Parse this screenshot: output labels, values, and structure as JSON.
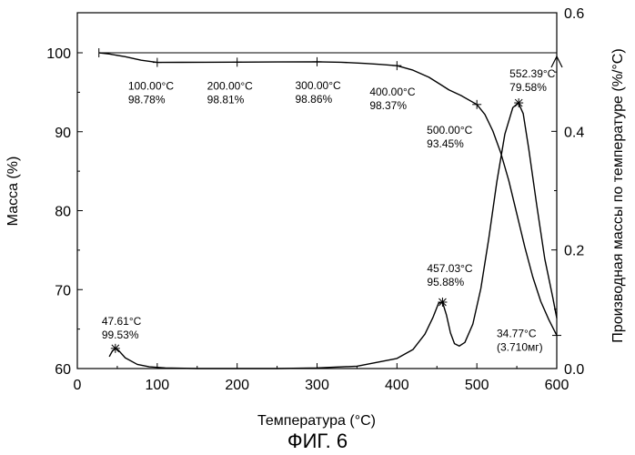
{
  "figure_caption": "ФИГ. 6",
  "chart_data": {
    "type": "line",
    "xlabel": "Температура (°C)",
    "ylabel": "Масса (%)",
    "y2label": "Производная массы по температуре (%/°C)",
    "xlim": [
      0,
      600
    ],
    "ylim": [
      60,
      105
    ],
    "y2lim": [
      0,
      0.6
    ],
    "x_ticks": [
      "0",
      "100",
      "200",
      "300",
      "400",
      "500",
      "600"
    ],
    "y_ticks": [
      "60",
      "70",
      "80",
      "90",
      "100"
    ],
    "y2_ticks": [
      "0.0",
      "0.2",
      "0.4",
      "0.6"
    ],
    "grid": false,
    "series": [
      {
        "axis": "left",
        "x": [
          27,
          40,
          60,
          80,
          100,
          130,
          160,
          200,
          250,
          300,
          330,
          360,
          380,
          400,
          420,
          440,
          455,
          465,
          480,
          500,
          510,
          520,
          530,
          540,
          550,
          560,
          570,
          580,
          590,
          600
        ],
        "y": [
          100.0,
          99.85,
          99.5,
          99.05,
          98.78,
          98.79,
          98.8,
          98.81,
          98.84,
          98.86,
          98.8,
          98.65,
          98.52,
          98.37,
          97.8,
          96.9,
          95.95,
          95.3,
          94.6,
          93.45,
          92.2,
          90.1,
          87.3,
          83.8,
          79.6,
          75.4,
          71.6,
          68.5,
          66.2,
          64.2
        ]
      },
      {
        "axis": "right",
        "x": [
          40,
          44,
          48,
          52,
          60,
          75,
          90,
          110,
          150,
          200,
          250,
          300,
          350,
          400,
          420,
          435,
          445,
          452,
          457,
          462,
          467,
          472,
          478,
          485,
          495,
          505,
          515,
          525,
          535,
          545,
          552,
          558,
          565,
          575,
          585,
          595,
          600
        ],
        "y": [
          0.02,
          0.03,
          0.034,
          0.03,
          0.018,
          0.007,
          0.003,
          0.001,
          0.0,
          0.0,
          0.0,
          0.001,
          0.004,
          0.017,
          0.032,
          0.058,
          0.086,
          0.11,
          0.112,
          0.09,
          0.06,
          0.042,
          0.038,
          0.044,
          0.075,
          0.135,
          0.22,
          0.315,
          0.395,
          0.44,
          0.448,
          0.43,
          0.37,
          0.275,
          0.185,
          0.12,
          0.085
        ]
      }
    ],
    "annotations": [
      {
        "series": 0,
        "x": 100,
        "y": 98.78,
        "lines": [
          "100.00°C",
          "98.78%"
        ]
      },
      {
        "series": 0,
        "x": 200,
        "y": 98.81,
        "lines": [
          "200.00°C",
          "98.81%"
        ]
      },
      {
        "series": 0,
        "x": 300,
        "y": 98.86,
        "lines": [
          "300.00°C",
          "98.86%"
        ]
      },
      {
        "series": 0,
        "x": 400,
        "y": 98.37,
        "lines": [
          "400.00°C",
          "98.37%"
        ]
      },
      {
        "series": 0,
        "x": 500,
        "y": 93.45,
        "lines": [
          "500.00°C",
          "93.45%"
        ]
      },
      {
        "series": 1,
        "x": 552.39,
        "y": 0.448,
        "lines": [
          "552.39°C",
          "79.58%"
        ]
      },
      {
        "series": 1,
        "x": 457.03,
        "y": 0.112,
        "lines": [
          "457.03°C",
          "95.88%"
        ]
      },
      {
        "series": 1,
        "x": 47.61,
        "y": 0.034,
        "lines": [
          "47.61°C",
          "99.53%"
        ]
      },
      {
        "series": 0,
        "x": 600,
        "y": 64.2,
        "lines": [
          "34.77°C",
          "(3.710мг)"
        ]
      }
    ]
  }
}
